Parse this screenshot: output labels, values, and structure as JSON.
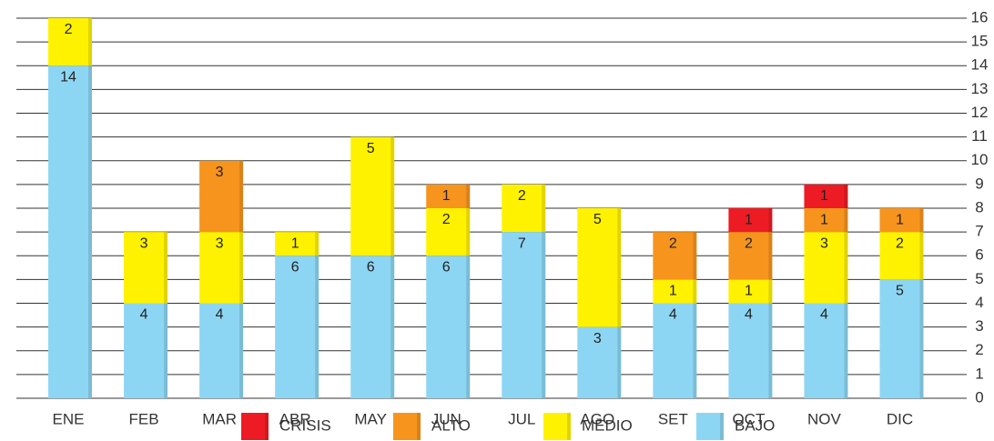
{
  "chart_data": {
    "type": "stacked_bar",
    "categories": [
      "ENE",
      "FEB",
      "MAR",
      "ABR",
      "MAY",
      "JUN",
      "JUL",
      "AGO",
      "SET",
      "OCT",
      "NOV",
      "DIC"
    ],
    "series": [
      {
        "name": "CRISIS",
        "color": "#ed1c24",
        "values": [
          null,
          null,
          null,
          null,
          null,
          null,
          null,
          null,
          null,
          1,
          1,
          null
        ]
      },
      {
        "name": "ALTO",
        "color": "#f7941d",
        "values": [
          null,
          null,
          3,
          null,
          null,
          1,
          null,
          null,
          2,
          2,
          1,
          1
        ]
      },
      {
        "name": "MEDIO",
        "color": "#fff200",
        "values": [
          2,
          3,
          3,
          1,
          5,
          2,
          2,
          5,
          1,
          1,
          3,
          2
        ]
      },
      {
        "name": "BAJO",
        "color": "#8dd6f3",
        "values": [
          14,
          4,
          4,
          6,
          6,
          6,
          7,
          3,
          4,
          4,
          4,
          5
        ]
      }
    ],
    "ylim": [
      0,
      16
    ],
    "yticks": [
      0,
      1,
      2,
      3,
      4,
      5,
      6,
      7,
      8,
      9,
      10,
      11,
      12,
      13,
      14,
      15,
      16
    ],
    "grid": true,
    "axis_side": "right",
    "legend": "bottom"
  }
}
